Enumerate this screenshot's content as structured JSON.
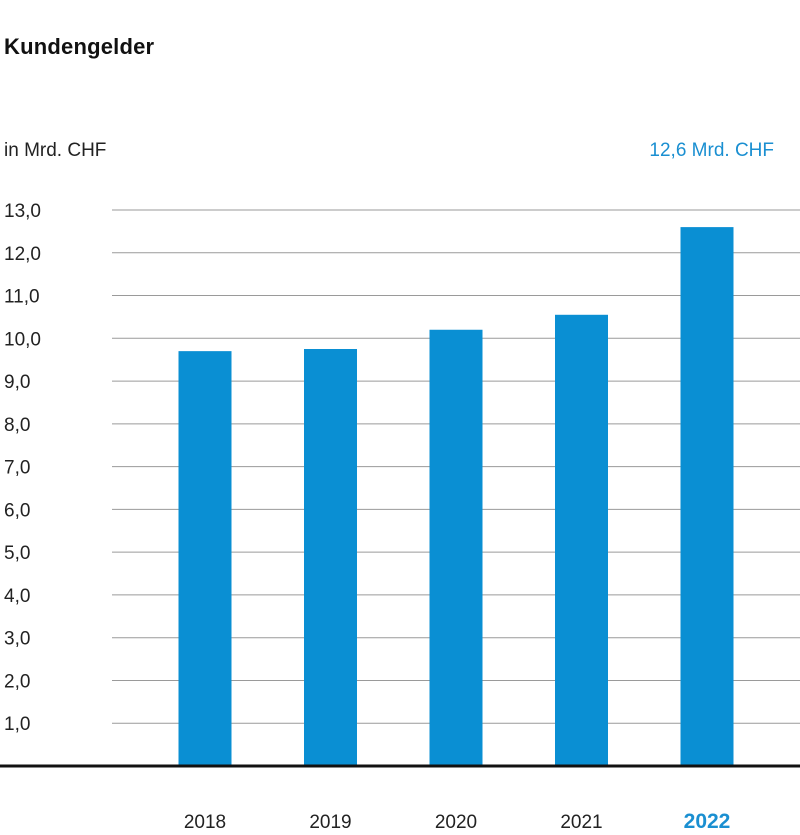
{
  "chart_data": {
    "type": "bar",
    "title": "Kundengelder",
    "ylabel": "in Mrd. CHF",
    "annotation": "12,6 Mrd. CHF",
    "categories": [
      "2018",
      "2019",
      "2020",
      "2021",
      "2022"
    ],
    "values": [
      9.7,
      9.75,
      10.2,
      10.55,
      12.6
    ],
    "highlight_category": "2022",
    "ylim": [
      0,
      13
    ],
    "yticks": [
      1,
      2,
      3,
      4,
      5,
      6,
      7,
      8,
      9,
      10,
      11,
      12,
      13
    ],
    "ytick_labels": [
      "1,0",
      "2,0",
      "3,0",
      "4,0",
      "5,0",
      "6,0",
      "7,0",
      "8,0",
      "9,0",
      "10,0",
      "11,0",
      "12,0",
      "13,0"
    ],
    "grid": true,
    "bar_color": "#0a8fd3",
    "highlight_color": "#1a8fd1"
  }
}
